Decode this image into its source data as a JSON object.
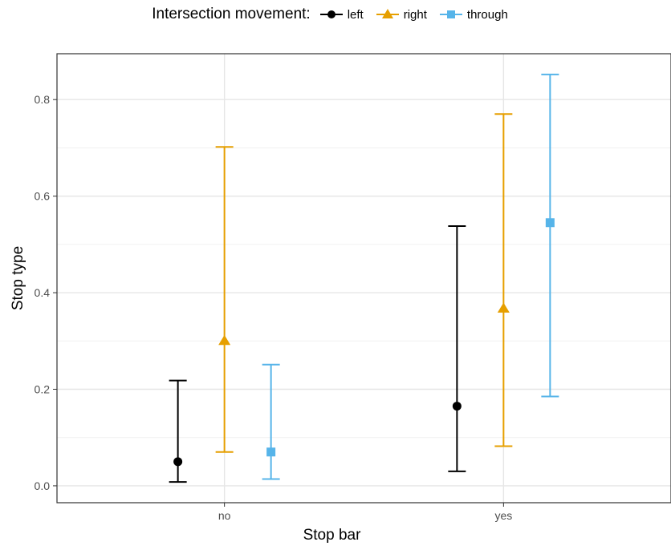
{
  "chart_data": {
    "type": "scatter",
    "subtype": "point-errorbar",
    "legend_title": "Intersection movement:",
    "legend_position": "top",
    "xlabel": "Stop bar",
    "ylabel": "Stop type",
    "categories": [
      "no",
      "yes"
    ],
    "ylim": [
      -0.035,
      0.895
    ],
    "yticks": [
      0.0,
      0.2,
      0.4,
      0.6,
      0.8
    ],
    "ytick_labels": [
      "0.0",
      "0.2",
      "0.4",
      "0.6",
      "0.8"
    ],
    "grid": true,
    "series": [
      {
        "name": "left",
        "color": "#000000",
        "marker": "circle",
        "estimate": [
          0.05,
          0.165
        ],
        "lower": [
          0.008,
          0.03
        ],
        "upper": [
          0.218,
          0.538
        ]
      },
      {
        "name": "right",
        "color": "#E69F00",
        "marker": "triangle",
        "estimate": [
          0.3,
          0.367
        ],
        "lower": [
          0.07,
          0.082
        ],
        "upper": [
          0.702,
          0.77
        ]
      },
      {
        "name": "through",
        "color": "#56B4E9",
        "marker": "square",
        "estimate": [
          0.07,
          0.545
        ],
        "lower": [
          0.014,
          0.185
        ],
        "upper": [
          0.251,
          0.852
        ]
      }
    ]
  }
}
